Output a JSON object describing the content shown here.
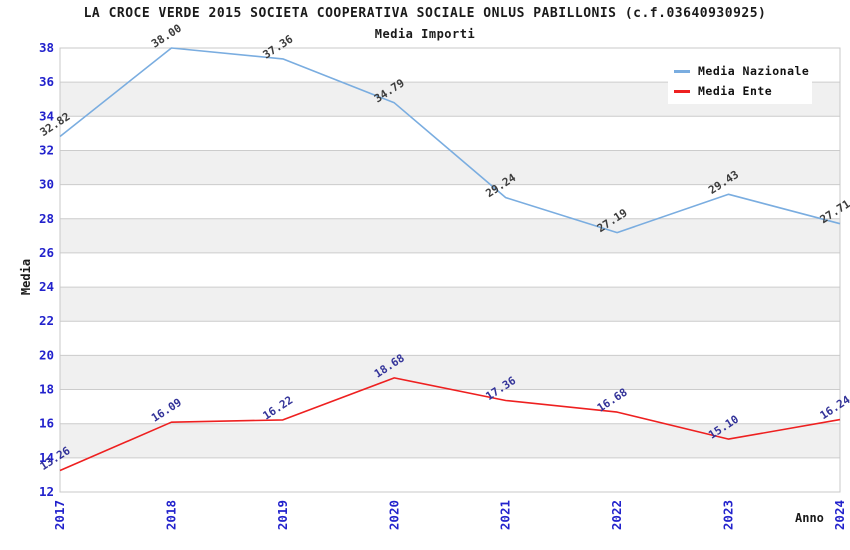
{
  "chart_data": {
    "type": "line",
    "title": "LA CROCE VERDE 2015 SOCIETA COOPERATIVA SOCIALE ONLUS PABILLONIS (c.f.03640930925)",
    "subtitle": "Media Importi",
    "xlabel": "Anno",
    "ylabel": "Media",
    "categories": [
      "2017",
      "2018",
      "2019",
      "2020",
      "2021",
      "2022",
      "2023",
      "2024"
    ],
    "series": [
      {
        "name": "Media Nazionale",
        "color": "#7aade0",
        "label_color": "#3c3c3c",
        "values": [
          32.82,
          38.0,
          37.36,
          34.79,
          29.24,
          27.19,
          29.43,
          27.71
        ],
        "point_labels": [
          "32.82",
          "38.00",
          "37.36",
          "34.79",
          "29.24",
          "27.19",
          "29.43",
          "27.71"
        ]
      },
      {
        "name": "Media Ente",
        "color": "#ee2020",
        "label_color": "#333399",
        "values": [
          13.26,
          16.09,
          16.22,
          18.68,
          17.36,
          16.68,
          15.1,
          16.24
        ],
        "point_labels": [
          "13.26",
          "16.09",
          "16.22",
          "18.68",
          "17.36",
          "16.68",
          "15.10",
          "16.24"
        ]
      }
    ],
    "ylim": [
      12,
      38
    ],
    "ytick_step": 2,
    "yticks": [
      "12",
      "14",
      "16",
      "18",
      "20",
      "22",
      "24",
      "26",
      "28",
      "30",
      "32",
      "34",
      "36",
      "38"
    ],
    "grid": true,
    "legend_position": "top-right",
    "colors": {
      "tick_label": "#2222cc",
      "band_fill": "#f0f0f0",
      "grid_line": "#cccccc",
      "plot_border": "#c8c8c8",
      "title_text": "#1a1a1a"
    }
  }
}
